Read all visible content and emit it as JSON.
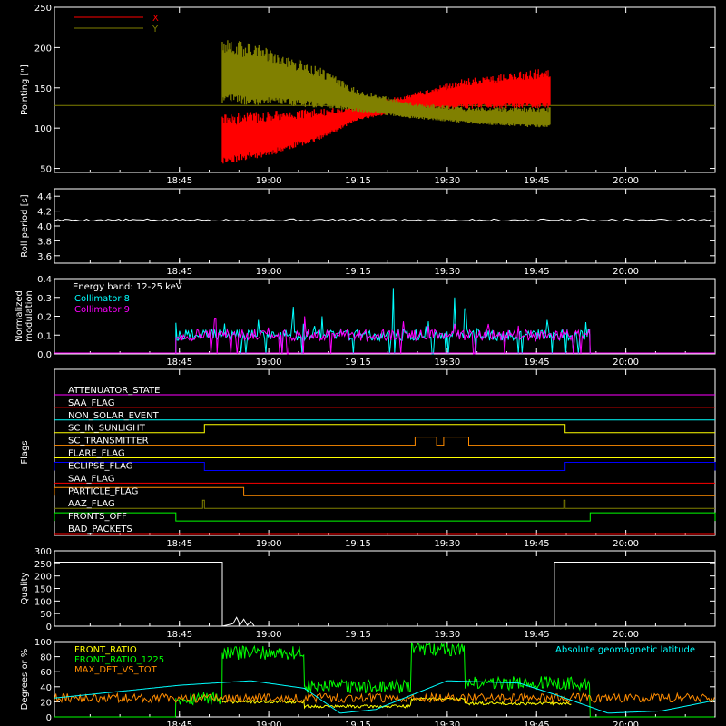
{
  "chart_data": [
    {
      "id": "pointing",
      "type": "area",
      "ylabel": "Pointing [\"]",
      "ylim": [
        45,
        250
      ],
      "yticks": [
        50,
        100,
        150,
        200,
        250
      ],
      "xticks": [
        "18:45",
        "19:00",
        "19:15",
        "19:30",
        "19:45",
        "20:00"
      ],
      "legend": [
        {
          "name": "X",
          "color": "#ff0000"
        },
        {
          "name": "Y",
          "color": "#808000"
        }
      ],
      "baseline": 128,
      "series": [
        {
          "name": "X",
          "color": "#ff0000",
          "upper_envelope": [
            [
              18.87,
              118
            ],
            [
              19.0,
              122
            ],
            [
              19.15,
              124
            ],
            [
              19.25,
              128
            ],
            [
              19.4,
              143
            ],
            [
              19.55,
              162
            ],
            [
              19.72,
              172
            ],
            [
              19.79,
              175
            ]
          ],
          "lower_envelope": [
            [
              18.87,
              55
            ],
            [
              19.0,
              65
            ],
            [
              19.15,
              86
            ],
            [
              19.25,
              110
            ],
            [
              19.4,
              122
            ],
            [
              19.55,
              124
            ],
            [
              19.72,
              124
            ],
            [
              19.79,
              124
            ]
          ]
        },
        {
          "name": "Y",
          "color": "#808000",
          "upper_envelope": [
            [
              18.87,
              213
            ],
            [
              19.0,
              200
            ],
            [
              19.15,
              174
            ],
            [
              19.25,
              148
            ],
            [
              19.4,
              132
            ],
            [
              19.55,
              126
            ],
            [
              19.72,
              126
            ],
            [
              19.79,
              126
            ]
          ],
          "lower_envelope": [
            [
              18.87,
              130
            ],
            [
              19.0,
              128
            ],
            [
              19.15,
              125
            ],
            [
              19.25,
              120
            ],
            [
              19.4,
              112
            ],
            [
              19.55,
              106
            ],
            [
              19.72,
              101
            ],
            [
              19.79,
              101
            ]
          ]
        }
      ]
    },
    {
      "id": "roll-period",
      "type": "line",
      "ylabel": "Roll period [s]",
      "ylim": [
        3.5,
        4.5
      ],
      "yticks": [
        3.6,
        3.8,
        4.0,
        4.2,
        4.4
      ],
      "xticks": [
        "18:45",
        "19:00",
        "19:15",
        "19:30",
        "19:45",
        "20:00"
      ],
      "series": [
        {
          "color": "#ffffff",
          "x": [
            18.4,
            20.25
          ],
          "y": [
            4.08,
            4.08
          ]
        }
      ]
    },
    {
      "id": "modulation",
      "type": "line",
      "ylabel": "Normalized modulation",
      "ylim": [
        0,
        0.4
      ],
      "yticks": [
        0.0,
        0.1,
        0.2,
        0.3,
        0.4
      ],
      "xticks": [
        "18:45",
        "19:00",
        "19:15",
        "19:30",
        "19:45",
        "20:00"
      ],
      "annotation": "Energy band: 12-25 keV",
      "legend": [
        {
          "name": "Collimator 8",
          "color": "#00ffff"
        },
        {
          "name": "Collimator 9",
          "color": "#ff00ff"
        }
      ],
      "series": [
        {
          "name": "Collimator 8",
          "color": "#00ffff",
          "x_range": [
            18.74,
            19.9
          ],
          "typical": 0.1,
          "peaks": [
            [
              18.97,
              0.18
            ],
            [
              19.07,
              0.25
            ],
            [
              19.15,
              0.2
            ],
            [
              19.35,
              0.35
            ],
            [
              19.52,
              0.3
            ],
            [
              19.55,
              0.24
            ],
            [
              19.78,
              0.18
            ]
          ]
        },
        {
          "name": "Collimator 9",
          "color": "#ff00ff",
          "x_range": [
            18.74,
            19.9
          ],
          "typical": 0.1,
          "peaks": [
            [
              18.85,
              0.19
            ],
            [
              19.0,
              0.14
            ],
            [
              19.1,
              0.2
            ],
            [
              19.32,
              0.13
            ],
            [
              19.52,
              0.16
            ],
            [
              19.7,
              0.15
            ]
          ]
        }
      ]
    },
    {
      "id": "flags",
      "type": "line",
      "ylabel": "Flags",
      "xticks": [
        "18:45",
        "19:00",
        "19:15",
        "19:30",
        "19:45",
        "20:00"
      ],
      "flags": [
        {
          "name": "ATTENUATOR_STATE",
          "color": "#ff00ff",
          "high": []
        },
        {
          "name": "SAA_FLAG",
          "color": "#ff0000",
          "high": []
        },
        {
          "name": "NON_SOLAR_EVENT",
          "color": "#00ffff",
          "high": []
        },
        {
          "name": "SC_IN_SUNLIGHT",
          "color": "#ffff00",
          "high": [
            [
              18.82,
              19.83
            ]
          ]
        },
        {
          "name": "SC_TRANSMITTER",
          "color": "#ff8c00",
          "high": [
            [
              19.41,
              19.47
            ],
            [
              19.49,
              19.56
            ]
          ]
        },
        {
          "name": "FLARE_FLAG",
          "color": "#ffff00",
          "high": []
        },
        {
          "name": "ECLIPSE_FLAG",
          "color": "#0000ff",
          "high": [
            [
              18.4,
              18.82
            ],
            [
              19.83,
              20.25
            ]
          ]
        },
        {
          "name": "SAA_FLAG",
          "color": "#ff0000",
          "high": []
        },
        {
          "name": "PARTICLE_FLAG",
          "color": "#ff8c00",
          "high": [
            [
              18.4,
              18.93
            ]
          ]
        },
        {
          "name": "AAZ_FLAG",
          "color": "#808000",
          "high": [
            [
              18.815,
              18.82
            ],
            [
              19.826,
              19.83
            ]
          ]
        },
        {
          "name": "FRONTS_OFF",
          "color": "#00ff00",
          "high": [
            [
              18.4,
              18.74
            ],
            [
              19.9,
              20.25
            ]
          ]
        },
        {
          "name": "BAD_PACKETS",
          "color": "#ff0000",
          "high": []
        }
      ]
    },
    {
      "id": "quality",
      "type": "line",
      "ylabel": "Quality",
      "ylim": [
        0,
        300
      ],
      "yticks": [
        0,
        50,
        100,
        150,
        200,
        250,
        300
      ],
      "xticks": [
        "18:45",
        "19:00",
        "19:15",
        "19:30",
        "19:45",
        "20:00"
      ],
      "series": [
        {
          "color": "#ffffff",
          "x": [
            18.4,
            18.87,
            18.87,
            18.9,
            18.91,
            18.92,
            18.93,
            18.94,
            18.95,
            18.96,
            19.0,
            19.8,
            19.8,
            20.25
          ],
          "y": [
            255,
            255,
            0,
            10,
            35,
            5,
            28,
            4,
            18,
            0,
            0,
            0,
            255,
            255
          ]
        }
      ]
    },
    {
      "id": "degrees",
      "type": "line",
      "ylabel": "Degrees or %",
      "ylim": [
        0,
        100
      ],
      "yticks": [
        0,
        20,
        40,
        60,
        80,
        100
      ],
      "xticks": [
        "18:45",
        "19:00",
        "19:15",
        "19:30",
        "19:45",
        "20:00"
      ],
      "annotation": "Absolute geomagnetic latitude",
      "legend": [
        {
          "name": "FRONT_RATIO",
          "color": "#ffff00"
        },
        {
          "name": "FRONT_RATIO_1225",
          "color": "#00ff00"
        },
        {
          "name": "MAX_DET_VS_TOT",
          "color": "#ff8c00"
        }
      ],
      "series": [
        {
          "name": "FRONT_RATIO",
          "color": "#ffff00",
          "x": [
            18.87,
            19.1,
            19.1,
            19.4,
            19.4,
            19.55,
            19.55,
            19.85
          ],
          "y": [
            20,
            20,
            14,
            14,
            24,
            24,
            18,
            18
          ]
        },
        {
          "name": "FRONT_RATIO_1225",
          "color": "#00ff00",
          "x": [
            18.4,
            18.74,
            18.74,
            18.87,
            18.87,
            19.1,
            19.1,
            19.4,
            19.4,
            19.55,
            19.55,
            19.9,
            19.9,
            20.25
          ],
          "y": [
            0,
            0,
            25,
            25,
            85,
            85,
            40,
            40,
            90,
            90,
            45,
            45,
            0,
            0
          ]
        },
        {
          "name": "MAX_DET_VS_TOT",
          "color": "#ff8c00",
          "x": [
            18.4,
            20.25
          ],
          "y": [
            25,
            25
          ]
        },
        {
          "name": "Absolute geomagnetic latitude",
          "color": "#00ffff",
          "x": [
            18.4,
            18.75,
            18.95,
            19.1,
            19.2,
            19.3,
            19.5,
            19.7,
            19.8,
            19.95,
            20.1,
            20.25
          ],
          "y": [
            25,
            42,
            48,
            38,
            5,
            10,
            48,
            45,
            30,
            5,
            8,
            22
          ]
        }
      ]
    }
  ]
}
